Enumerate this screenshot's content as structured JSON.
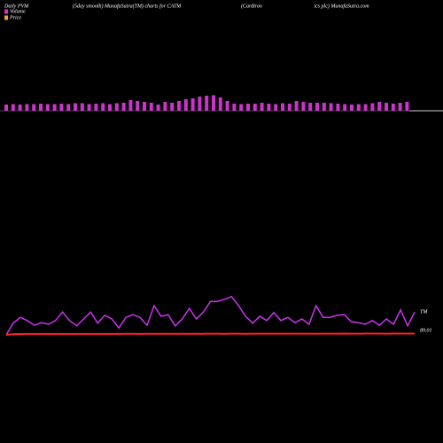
{
  "chart_data": {
    "type": "pvm",
    "title": "Daily PVM",
    "subtitle": "(5day smooth) MunafaSutra(TM) charts for CATM",
    "company": "(Cardtron                                       ics plc) MunafaSutra.com",
    "end_label": "TM",
    "series": [
      {
        "name": "Volume",
        "color": "#cc33cc",
        "values": [
          28,
          30,
          28,
          30,
          30,
          32,
          30,
          30,
          32,
          30,
          34,
          34,
          30,
          32,
          34,
          30,
          34,
          36,
          48,
          44,
          40,
          36,
          28,
          40,
          36,
          44,
          52,
          56,
          64,
          68,
          70,
          60,
          44,
          32,
          30,
          32,
          32,
          36,
          32,
          30,
          34,
          32,
          44,
          40,
          36,
          36,
          36,
          34,
          32,
          30,
          28,
          30,
          30,
          34,
          40,
          36,
          32,
          36,
          40
        ]
      },
      {
        "color": "#cc33ee",
        "values": [
          20,
          42,
          53,
          47,
          38,
          43,
          40,
          47,
          63,
          47,
          37,
          50,
          63,
          42,
          57,
          50,
          33,
          53,
          58,
          53,
          38,
          75,
          55,
          58,
          37,
          50,
          70,
          50,
          63,
          83,
          83,
          87,
          92,
          75,
          55,
          42,
          55,
          47,
          62,
          47,
          53,
          43,
          50,
          40,
          75,
          53,
          53,
          57,
          58,
          45,
          43,
          40,
          47,
          38,
          50,
          40,
          67,
          37,
          63
        ]
      },
      {
        "name": "Price",
        "color": "#ff2222",
        "legend_color": "#f0a040",
        "axis": "y2",
        "values": [
          88.0,
          88.6,
          88.65,
          88.7,
          88.7,
          88.75,
          88.7,
          88.7,
          88.75,
          88.75,
          88.7,
          88.7,
          88.75,
          88.75,
          88.7,
          88.7,
          88.75,
          88.8,
          88.8,
          88.75,
          88.8,
          88.8,
          88.8,
          88.8,
          88.85,
          88.85,
          88.85,
          88.8,
          88.85,
          88.9,
          88.9,
          88.85,
          88.9,
          88.9,
          88.85,
          88.9,
          88.9,
          88.95,
          88.9,
          88.9,
          88.95,
          88.9,
          88.9,
          88.95,
          88.95,
          88.95,
          88.95,
          88.95,
          89.0,
          88.95,
          88.95,
          89.0,
          89.0,
          89.0,
          88.95,
          89.0,
          89.0,
          89.0,
          89.01
        ]
      }
    ],
    "ylim": [
      0,
      100
    ],
    "y2lim": [
      80,
      120
    ],
    "volume_lim": [
      0,
      100
    ]
  }
}
